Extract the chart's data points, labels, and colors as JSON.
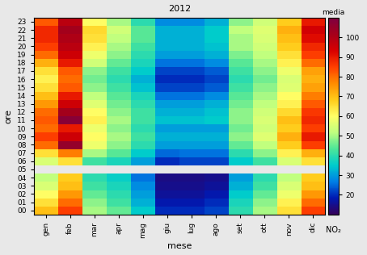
{
  "title": "2012",
  "xlabel": "mese",
  "ylabel": "ore",
  "colorbar_label_top": "media",
  "colorbar_label_bottom": "NO₂",
  "months": [
    "gen",
    "feb",
    "mar",
    "apr",
    "mag",
    "giu",
    "lug",
    "ago",
    "set",
    "ott",
    "nov",
    "dic"
  ],
  "hours": [
    "00",
    "01",
    "02",
    "03",
    "04",
    "05",
    "06",
    "07",
    "08",
    "09",
    "10",
    "11",
    "12",
    "13",
    "14",
    "15",
    "16",
    "17",
    "18",
    "19",
    "20",
    "21",
    "22",
    "23"
  ],
  "vmin": 10,
  "vmax": 110,
  "colorbar_ticks": [
    20,
    30,
    40,
    50,
    60,
    70,
    80,
    90,
    100
  ],
  "data": [
    [
      70,
      85,
      50,
      45,
      35,
      20,
      20,
      22,
      40,
      50,
      65,
      85
    ],
    [
      65,
      80,
      48,
      42,
      32,
      18,
      18,
      20,
      38,
      48,
      62,
      80
    ],
    [
      60,
      75,
      45,
      40,
      30,
      16,
      16,
      18,
      35,
      45,
      58,
      75
    ],
    [
      55,
      70,
      42,
      38,
      28,
      15,
      15,
      16,
      32,
      42,
      55,
      70
    ],
    [
      52,
      68,
      40,
      36,
      26,
      14,
      14,
      15,
      30,
      40,
      52,
      68
    ],
    [
      null,
      null,
      null,
      null,
      null,
      null,
      null,
      null,
      null,
      null,
      null,
      null
    ],
    [
      55,
      65,
      42,
      38,
      30,
      20,
      22,
      22,
      35,
      42,
      55,
      65
    ],
    [
      65,
      78,
      50,
      44,
      35,
      25,
      26,
      26,
      40,
      48,
      62,
      72
    ],
    [
      80,
      105,
      58,
      48,
      40,
      30,
      30,
      30,
      45,
      52,
      68,
      85
    ],
    [
      85,
      95,
      60,
      50,
      42,
      32,
      32,
      32,
      48,
      56,
      72,
      90
    ],
    [
      80,
      90,
      58,
      48,
      40,
      30,
      30,
      30,
      46,
      54,
      68,
      85
    ],
    [
      82,
      108,
      62,
      50,
      42,
      34,
      34,
      35,
      48,
      55,
      70,
      88
    ],
    [
      80,
      102,
      60,
      48,
      42,
      32,
      32,
      34,
      48,
      54,
      66,
      86
    ],
    [
      75,
      95,
      56,
      46,
      40,
      30,
      30,
      32,
      46,
      52,
      62,
      82
    ],
    [
      70,
      90,
      52,
      44,
      38,
      26,
      26,
      28,
      44,
      50,
      60,
      78
    ],
    [
      65,
      82,
      48,
      42,
      34,
      22,
      22,
      24,
      42,
      48,
      56,
      74
    ],
    [
      62,
      80,
      46,
      40,
      32,
      20,
      20,
      22,
      40,
      46,
      55,
      72
    ],
    [
      65,
      82,
      48,
      42,
      35,
      22,
      22,
      24,
      42,
      48,
      58,
      74
    ],
    [
      72,
      90,
      54,
      45,
      38,
      26,
      26,
      28,
      44,
      50,
      62,
      80
    ],
    [
      80,
      95,
      58,
      48,
      40,
      30,
      30,
      32,
      47,
      52,
      65,
      85
    ],
    [
      85,
      98,
      62,
      50,
      42,
      32,
      32,
      34,
      50,
      54,
      68,
      88
    ],
    [
      88,
      100,
      65,
      52,
      44,
      32,
      32,
      35,
      50,
      55,
      70,
      92
    ],
    [
      88,
      102,
      66,
      54,
      44,
      32,
      32,
      35,
      52,
      56,
      72,
      94
    ],
    [
      82,
      98,
      60,
      50,
      40,
      28,
      28,
      32,
      48,
      54,
      68,
      90
    ]
  ]
}
